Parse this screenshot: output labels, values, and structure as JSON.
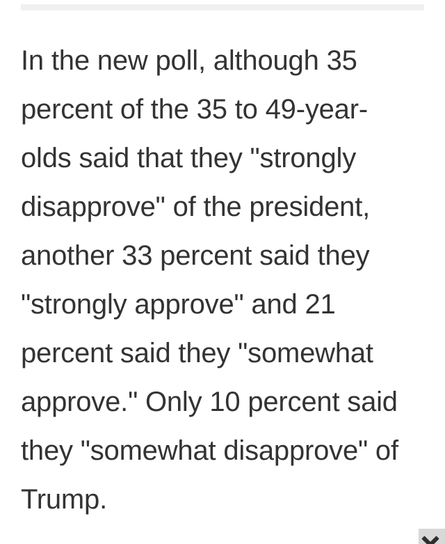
{
  "page": {
    "background_color": "#ffffff"
  },
  "divider": {
    "color": "#f0f0f0"
  },
  "article": {
    "text_color": "#333333",
    "lines": [
      "In the new poll, although 35",
      "percent of the 35 to 49-year-",
      "olds said that they \"strongly",
      "disapprove\" of the president,",
      "another 33 percent said they",
      "\"strongly approve\" and 21",
      "percent said they \"somewhat",
      "approve.\" Only 10 percent said",
      "they \"somewhat disapprove\" of",
      "Trump."
    ]
  },
  "ad_banner": {
    "close_icon": "x-cross",
    "background_color": "#d8d8d8",
    "icon_color": "#2f2f2f"
  }
}
